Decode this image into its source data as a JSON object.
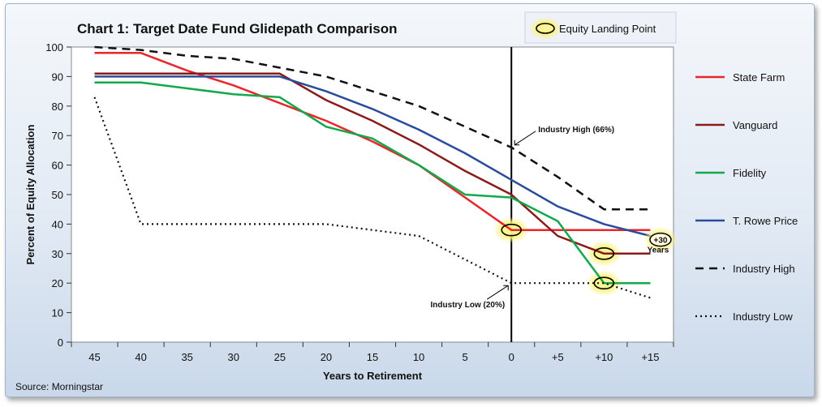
{
  "chart_data": {
    "type": "line",
    "title": "Chart 1: Target Date Fund Glidepath Comparison",
    "xlabel": "Years to Retirement",
    "ylabel": "Percent of Equity Allocation",
    "x": [
      "45",
      "40",
      "35",
      "30",
      "25",
      "20",
      "15",
      "10",
      "5",
      "0",
      "+5",
      "+10",
      "+15"
    ],
    "ylim": [
      0,
      100
    ],
    "yticks": [
      0,
      10,
      20,
      30,
      40,
      50,
      60,
      70,
      80,
      90,
      100
    ],
    "grid": false,
    "legend_position": "right",
    "source": "Source: Morningstar",
    "landing_legend_label": "Equity Landing Point",
    "series": [
      {
        "name": "State Farm",
        "color": "#e8262b",
        "dash": "solid",
        "values": [
          98,
          98,
          92,
          87,
          81,
          75,
          68,
          60,
          49,
          38,
          38,
          38,
          38
        ]
      },
      {
        "name": "Vanguard",
        "color": "#8b1a1a",
        "dash": "solid",
        "values": [
          91,
          91,
          91,
          91,
          91,
          82,
          75,
          67,
          58,
          50,
          36,
          30,
          30
        ]
      },
      {
        "name": "Fidelity",
        "color": "#12a84b",
        "dash": "solid",
        "values": [
          88,
          88,
          86,
          84,
          83,
          73,
          69,
          60,
          50,
          49,
          41,
          20,
          20
        ]
      },
      {
        "name": "T. Rowe Price",
        "color": "#2a4c9c",
        "dash": "solid",
        "values": [
          90,
          90,
          90,
          90,
          90,
          85,
          79,
          72,
          64,
          55,
          46,
          40,
          36
        ]
      },
      {
        "name": "Industry High",
        "color": "#111111",
        "dash": "dash",
        "values": [
          100,
          99,
          97,
          96,
          93,
          90,
          85,
          80,
          73,
          66,
          56,
          45,
          45
        ]
      },
      {
        "name": "Industry Low",
        "color": "#111111",
        "dash": "dot",
        "values": [
          83,
          40,
          40,
          40,
          40,
          40,
          38,
          36,
          28,
          20,
          20,
          20,
          15
        ]
      }
    ],
    "vertical_line_at": "0",
    "landing_points": [
      {
        "x": "0",
        "y": 38
      },
      {
        "x": "+10",
        "y": 30
      },
      {
        "x": "+10",
        "y": 20
      }
    ],
    "annotations": [
      {
        "text": "Industry High (66%)",
        "x": "0",
        "y": 66
      },
      {
        "text": "Industry Low (20%)",
        "x": "0",
        "y": 20
      },
      {
        "text": "+30",
        "sub": "Years",
        "y": 35
      }
    ]
  }
}
